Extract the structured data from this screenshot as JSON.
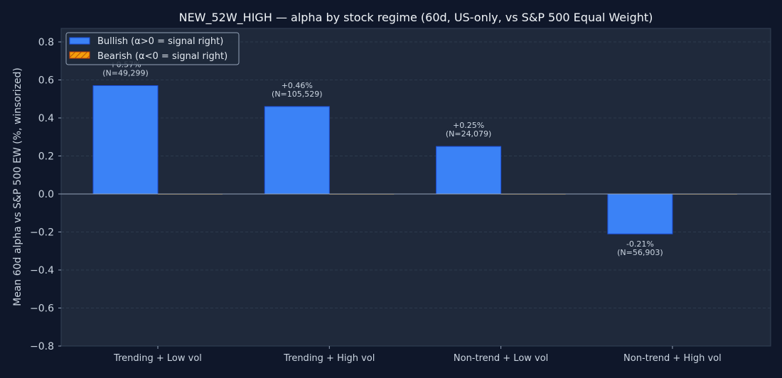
{
  "chart_data": {
    "type": "bar",
    "title": "NEW_52W_HIGH — alpha by stock regime (60d, US-only, vs S&P 500 Equal Weight)",
    "xlabel": "",
    "ylabel": "Mean 60d alpha vs S&P 500 EW (%, winsorized)",
    "ylim": [
      -0.8,
      0.8
    ],
    "yticks": [
      "0.8",
      "0.6",
      "0.4",
      "0.2",
      "0.0",
      "−0.2",
      "−0.4",
      "−0.6",
      "−0.8"
    ],
    "ytick_values": [
      0.8,
      0.6,
      0.4,
      0.2,
      0,
      -0.2,
      -0.4,
      -0.6,
      -0.8
    ],
    "grid": true,
    "legend_position": "top-left",
    "categories": [
      "Trending + Low vol",
      "Trending + High vol",
      "Non-trend + Low vol",
      "Non-trend + High vol"
    ],
    "series": [
      {
        "name": "Bullish (α>0 = signal right)",
        "color": "#3b82f6",
        "values": [
          0.57,
          0.46,
          0.25,
          -0.21
        ]
      },
      {
        "name": "Bearish (α<0 = signal right)",
        "color": "#f59e0b",
        "values": [
          0,
          0,
          0,
          0
        ]
      }
    ],
    "data_labels": [
      {
        "pct": "+0.57%",
        "n": "(N=49,299)"
      },
      {
        "pct": "+0.46%",
        "n": "(N=105,529)"
      },
      {
        "pct": "+0.25%",
        "n": "(N=24,079)"
      },
      {
        "pct": "-0.21%",
        "n": "(N=56,903)"
      }
    ],
    "colors": {
      "background": "#0f172a",
      "plot_bg": "#1e293b",
      "text": "#cbd5e1",
      "title": "#f1f5f9"
    }
  }
}
